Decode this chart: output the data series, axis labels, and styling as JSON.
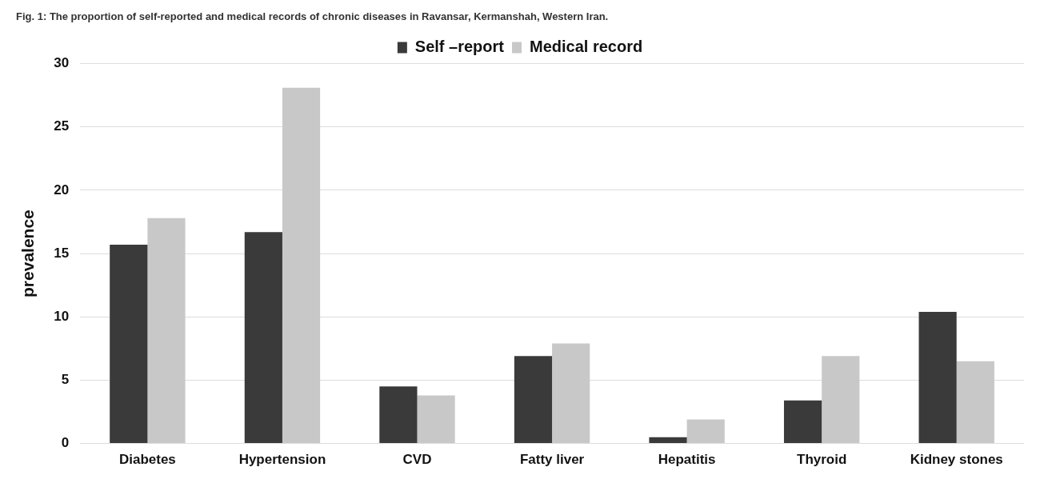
{
  "chart_data": {
    "type": "bar",
    "title": "Fig. 1: The proportion of self-reported and medical records of chronic diseases in Ravansar, Kermanshah, Western Iran.",
    "ylabel": "prevalence",
    "categories": [
      "Diabetes",
      "Hypertension",
      "CVD",
      "Fatty liver",
      "Hepatitis",
      "Thyroid",
      "Kidney stones"
    ],
    "series": [
      {
        "name": "Self –report",
        "color": "#3a3a3a",
        "values": [
          15.7,
          16.7,
          4.5,
          6.9,
          0.5,
          3.4,
          10.4
        ]
      },
      {
        "name": "Medical record",
        "color": "#c8c8c8",
        "values": [
          17.8,
          28.1,
          3.8,
          7.9,
          1.9,
          6.9,
          6.5
        ]
      }
    ],
    "ylim": [
      0,
      30
    ],
    "yticks": [
      0,
      5,
      10,
      15,
      20,
      25,
      30
    ],
    "grid": "y",
    "legend": "top"
  }
}
